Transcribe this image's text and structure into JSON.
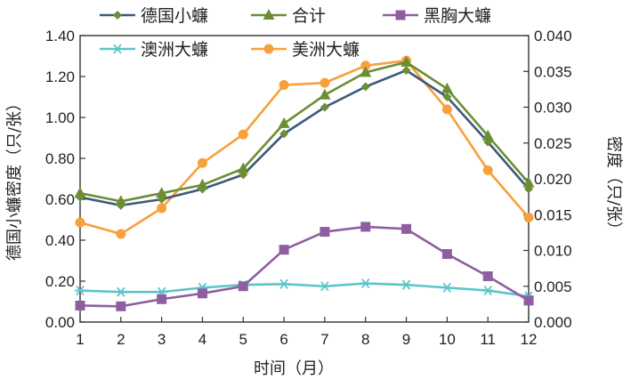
{
  "chart_data": {
    "type": "line",
    "xlabel": "时间（月）",
    "ylabel_left": "德国小蠊密度（只/张）",
    "ylabel_right": "密度（只/张）",
    "categories": [
      "1",
      "2",
      "3",
      "4",
      "5",
      "6",
      "7",
      "8",
      "9",
      "10",
      "11",
      "12"
    ],
    "ylim_left": [
      0,
      1.4
    ],
    "yticks_left": [
      "0.00",
      "0.20",
      "0.40",
      "0.60",
      "0.80",
      "1.00",
      "1.20",
      "1.40"
    ],
    "ylim_right": [
      0,
      0.04
    ],
    "yticks_right": [
      "0.000",
      "0.005",
      "0.010",
      "0.015",
      "0.020",
      "0.025",
      "0.030",
      "0.035",
      "0.040"
    ],
    "grid": false,
    "legend_position": "top",
    "series": [
      {
        "name": "德国小蠊",
        "axis": "left",
        "color": "#3c5a7a",
        "marker": "diamond",
        "values": [
          0.61,
          0.57,
          0.6,
          0.65,
          0.72,
          0.92,
          1.05,
          1.15,
          1.23,
          1.1,
          0.88,
          0.65
        ]
      },
      {
        "name": "合计",
        "axis": "left",
        "color": "#6b8e35",
        "marker": "triangle",
        "values": [
          0.63,
          0.59,
          0.63,
          0.67,
          0.75,
          0.97,
          1.11,
          1.22,
          1.27,
          1.14,
          0.91,
          0.68
        ]
      },
      {
        "name": "黑胸大蠊",
        "axis": "right",
        "color": "#8e5fa0",
        "marker": "square",
        "values": [
          0.0023,
          0.0022,
          0.0032,
          0.004,
          0.005,
          0.0101,
          0.0126,
          0.0133,
          0.013,
          0.0095,
          0.0064,
          0.003
        ]
      },
      {
        "name": "澳洲大蠊",
        "axis": "right",
        "color": "#5bc4cc",
        "marker": "asterisk",
        "values": [
          0.0044,
          0.0042,
          0.0042,
          0.0048,
          0.0052,
          0.0053,
          0.005,
          0.0054,
          0.0052,
          0.0048,
          0.0044,
          0.0036
        ]
      },
      {
        "name": "美洲大蠊",
        "axis": "right",
        "color": "#f7a03c",
        "marker": "circle",
        "values": [
          0.0139,
          0.0123,
          0.0159,
          0.0222,
          0.0262,
          0.0331,
          0.0334,
          0.0358,
          0.0365,
          0.0297,
          0.0212,
          0.0146
        ]
      }
    ]
  }
}
